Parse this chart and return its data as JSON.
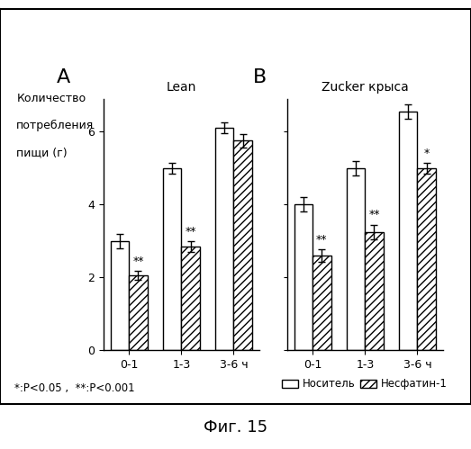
{
  "panel_A_title": "Lean",
  "panel_B_title": "Zucker крыса",
  "ylabel_line1": "Количество",
  "ylabel_line2": "потребления",
  "ylabel_line3": "пищи (г)",
  "xlabel_suffix": "ч",
  "categories": [
    "0-1",
    "1-3",
    "3-6"
  ],
  "A_carrier_vals": [
    3.0,
    5.0,
    6.1
  ],
  "A_carrier_errs": [
    0.2,
    0.15,
    0.15
  ],
  "A_nesfatin_vals": [
    2.05,
    2.85,
    5.75
  ],
  "A_nesfatin_errs": [
    0.12,
    0.15,
    0.18
  ],
  "A_annotations": [
    "**",
    "**",
    ""
  ],
  "B_carrier_vals": [
    4.0,
    5.0,
    6.55
  ],
  "B_carrier_errs": [
    0.2,
    0.2,
    0.2
  ],
  "B_nesfatin_vals": [
    2.6,
    3.25,
    5.0
  ],
  "B_nesfatin_errs": [
    0.18,
    0.2,
    0.15
  ],
  "B_annotations": [
    "**",
    "**",
    "*"
  ],
  "ylim": [
    0,
    6.9
  ],
  "yticks": [
    0,
    2,
    4,
    6
  ],
  "bar_width": 0.35,
  "carrier_color": "#ffffff",
  "nesfatin_hatch": "////",
  "nesfatin_facecolor": "#ffffff",
  "edge_color": "#000000",
  "legend_label_carrier": "Носитель",
  "legend_label_nesfatin": "Несфатин-1",
  "footnote": "*:P<0.05 ,  **:P<0.001",
  "figure_title": "Фиг. 15",
  "panel_A_label": "A",
  "panel_B_label": "B",
  "annotation_fontsize": 9,
  "tick_fontsize": 9,
  "label_fontsize": 9,
  "title_fontsize": 10,
  "panel_label_fontsize": 16
}
